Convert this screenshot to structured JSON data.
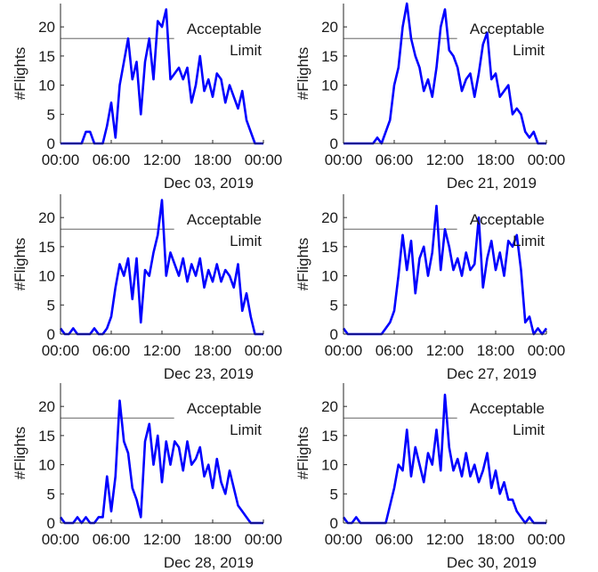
{
  "chart_data": [
    {
      "type": "line",
      "ylabel": "#Flights",
      "xlabel": "Dec 03, 2019",
      "x": [
        0,
        0.5,
        1,
        1.5,
        2,
        2.5,
        3,
        3.5,
        4,
        4.5,
        5,
        5.5,
        6,
        6.5,
        7,
        7.5,
        8,
        8.5,
        9,
        9.5,
        10,
        10.5,
        11,
        11.5,
        12,
        12.5,
        13,
        13.5,
        14,
        14.5,
        15,
        15.5,
        16,
        16.5,
        17,
        17.5,
        18,
        18.5,
        19,
        19.5,
        20,
        20.5,
        21,
        21.5,
        22,
        22.5,
        23,
        23.5,
        24
      ],
      "series": [
        {
          "color": "#0000ff",
          "values": [
            0,
            0,
            0,
            0,
            0,
            0,
            2,
            2,
            0,
            0,
            0,
            3,
            7,
            1,
            10,
            14,
            18,
            11,
            14,
            5,
            14,
            18,
            11,
            21,
            20,
            23,
            11,
            12,
            13,
            11,
            13,
            7,
            10,
            15,
            9,
            11,
            8,
            12,
            11,
            7,
            10,
            8,
            6,
            9,
            4,
            2,
            0,
            0,
            0
          ]
        }
      ],
      "xlim": [
        0,
        24
      ],
      "xticks": [
        {
          "value": 0,
          "label": "00:00"
        },
        {
          "value": 6,
          "label": "06:00"
        },
        {
          "value": 12,
          "label": "12:00"
        },
        {
          "value": 18,
          "label": "18:00"
        },
        {
          "value": 24,
          "label": "00:00"
        }
      ],
      "ylim": [
        0,
        24
      ],
      "yticks": [
        0,
        5,
        10,
        15,
        20
      ],
      "reference_line": {
        "value": 18,
        "color": "#808080"
      },
      "annotation": [
        "Acceptable",
        "Limit"
      ]
    },
    {
      "type": "line",
      "ylabel": "#Flights",
      "xlabel": "Dec 21, 2019",
      "x": [
        0,
        0.5,
        1,
        1.5,
        2,
        2.5,
        3,
        3.5,
        4,
        4.5,
        5,
        5.5,
        6,
        6.5,
        7,
        7.5,
        8,
        8.5,
        9,
        9.5,
        10,
        10.5,
        11,
        11.5,
        12,
        12.5,
        13,
        13.5,
        14,
        14.5,
        15,
        15.5,
        16,
        16.5,
        17,
        17.5,
        18,
        18.5,
        19,
        19.5,
        20,
        20.5,
        21,
        21.5,
        22,
        22.5,
        23,
        23.5,
        24
      ],
      "series": [
        {
          "color": "#0000ff",
          "values": [
            0,
            0,
            0,
            0,
            0,
            0,
            0,
            0,
            1,
            0,
            2,
            4,
            10,
            13,
            20,
            24,
            18,
            15,
            13,
            9,
            11,
            8,
            13,
            20,
            23,
            16,
            15,
            13,
            9,
            11,
            12,
            8,
            12,
            17,
            19,
            11,
            12,
            8,
            9,
            10,
            5,
            6,
            5,
            2,
            1,
            2,
            0,
            0,
            0
          ]
        }
      ],
      "xlim": [
        0,
        24
      ],
      "xticks": [
        {
          "value": 0,
          "label": "00:00"
        },
        {
          "value": 6,
          "label": "06:00"
        },
        {
          "value": 12,
          "label": "12:00"
        },
        {
          "value": 18,
          "label": "18:00"
        },
        {
          "value": 24,
          "label": "00:00"
        }
      ],
      "ylim": [
        0,
        24
      ],
      "yticks": [
        0,
        5,
        10,
        15,
        20
      ],
      "reference_line": {
        "value": 18,
        "color": "#808080"
      },
      "annotation": [
        "Acceptable",
        "Limit"
      ]
    },
    {
      "type": "line",
      "ylabel": "#Flights",
      "xlabel": "Dec 23, 2019",
      "x": [
        0,
        0.5,
        1,
        1.5,
        2,
        2.5,
        3,
        3.5,
        4,
        4.5,
        5,
        5.5,
        6,
        6.5,
        7,
        7.5,
        8,
        8.5,
        9,
        9.5,
        10,
        10.5,
        11,
        11.5,
        12,
        12.5,
        13,
        13.5,
        14,
        14.5,
        15,
        15.5,
        16,
        16.5,
        17,
        17.5,
        18,
        18.5,
        19,
        19.5,
        20,
        20.5,
        21,
        21.5,
        22,
        22.5,
        23,
        23.5,
        24
      ],
      "series": [
        {
          "color": "#0000ff",
          "values": [
            1,
            0,
            0,
            1,
            0,
            0,
            0,
            0,
            1,
            0,
            0,
            1,
            3,
            8,
            12,
            10,
            13,
            6,
            13,
            2,
            11,
            10,
            14,
            17,
            23,
            10,
            14,
            12,
            10,
            13,
            9,
            12,
            10,
            13,
            8,
            11,
            9,
            12,
            9,
            11,
            10,
            8,
            12,
            4,
            7,
            3,
            0,
            0,
            0
          ]
        }
      ],
      "xlim": [
        0,
        24
      ],
      "xticks": [
        {
          "value": 0,
          "label": "00:00"
        },
        {
          "value": 6,
          "label": "06:00"
        },
        {
          "value": 12,
          "label": "12:00"
        },
        {
          "value": 18,
          "label": "18:00"
        },
        {
          "value": 24,
          "label": "00:00"
        }
      ],
      "ylim": [
        0,
        24
      ],
      "yticks": [
        0,
        5,
        10,
        15,
        20
      ],
      "reference_line": {
        "value": 18,
        "color": "#808080"
      },
      "annotation": [
        "Acceptable",
        "Limit"
      ]
    },
    {
      "type": "line",
      "ylabel": "#Flights",
      "xlabel": "Dec 27, 2019",
      "x": [
        0,
        0.5,
        1,
        1.5,
        2,
        2.5,
        3,
        3.5,
        4,
        4.5,
        5,
        5.5,
        6,
        6.5,
        7,
        7.5,
        8,
        8.5,
        9,
        9.5,
        10,
        10.5,
        11,
        11.5,
        12,
        12.5,
        13,
        13.5,
        14,
        14.5,
        15,
        15.5,
        16,
        16.5,
        17,
        17.5,
        18,
        18.5,
        19,
        19.5,
        20,
        20.5,
        21,
        21.5,
        22,
        22.5,
        23,
        23.5,
        24
      ],
      "series": [
        {
          "color": "#0000ff",
          "values": [
            1,
            0,
            0,
            0,
            0,
            0,
            0,
            0,
            0,
            0,
            1,
            2,
            4,
            10,
            17,
            11,
            16,
            7,
            13,
            15,
            10,
            14,
            22,
            11,
            18,
            15,
            11,
            13,
            10,
            14,
            11,
            12,
            20,
            8,
            13,
            16,
            11,
            14,
            10,
            16,
            15,
            17,
            11,
            2,
            3,
            0,
            1,
            0,
            1
          ]
        }
      ],
      "xlim": [
        0,
        24
      ],
      "xticks": [
        {
          "value": 0,
          "label": "00:00"
        },
        {
          "value": 6,
          "label": "06:00"
        },
        {
          "value": 12,
          "label": "12:00"
        },
        {
          "value": 18,
          "label": "18:00"
        },
        {
          "value": 24,
          "label": "00:00"
        }
      ],
      "ylim": [
        0,
        24
      ],
      "yticks": [
        0,
        5,
        10,
        15,
        20
      ],
      "reference_line": {
        "value": 18,
        "color": "#808080"
      },
      "annotation": [
        "Acceptable",
        "Limit"
      ]
    },
    {
      "type": "line",
      "ylabel": "#Flights",
      "xlabel": "Dec 28, 2019",
      "x": [
        0,
        0.5,
        1,
        1.5,
        2,
        2.5,
        3,
        3.5,
        4,
        4.5,
        5,
        5.5,
        6,
        6.5,
        7,
        7.5,
        8,
        8.5,
        9,
        9.5,
        10,
        10.5,
        11,
        11.5,
        12,
        12.5,
        13,
        13.5,
        14,
        14.5,
        15,
        15.5,
        16,
        16.5,
        17,
        17.5,
        18,
        18.5,
        19,
        19.5,
        20,
        20.5,
        21,
        21.5,
        22,
        22.5,
        23,
        23.5,
        24
      ],
      "series": [
        {
          "color": "#0000ff",
          "values": [
            1,
            0,
            0,
            0,
            1,
            0,
            1,
            0,
            0,
            1,
            1,
            8,
            2,
            8,
            21,
            14,
            12,
            6,
            4,
            1,
            14,
            17,
            10,
            15,
            7,
            14,
            10,
            14,
            13,
            9,
            14,
            10,
            11,
            13,
            8,
            10,
            6,
            11,
            7,
            5,
            9,
            6,
            3,
            2,
            1,
            0,
            0,
            0,
            0
          ]
        }
      ],
      "xlim": [
        0,
        24
      ],
      "xticks": [
        {
          "value": 0,
          "label": "00:00"
        },
        {
          "value": 6,
          "label": "06:00"
        },
        {
          "value": 12,
          "label": "12:00"
        },
        {
          "value": 18,
          "label": "18:00"
        },
        {
          "value": 24,
          "label": "00:00"
        }
      ],
      "ylim": [
        0,
        24
      ],
      "yticks": [
        0,
        5,
        10,
        15,
        20
      ],
      "reference_line": {
        "value": 18,
        "color": "#808080"
      },
      "annotation": [
        "Acceptable",
        "Limit"
      ]
    },
    {
      "type": "line",
      "ylabel": "#Flights",
      "xlabel": "Dec 30, 2019",
      "x": [
        0,
        0.5,
        1,
        1.5,
        2,
        2.5,
        3,
        3.5,
        4,
        4.5,
        5,
        5.5,
        6,
        6.5,
        7,
        7.5,
        8,
        8.5,
        9,
        9.5,
        10,
        10.5,
        11,
        11.5,
        12,
        12.5,
        13,
        13.5,
        14,
        14.5,
        15,
        15.5,
        16,
        16.5,
        17,
        17.5,
        18,
        18.5,
        19,
        19.5,
        20,
        20.5,
        21,
        21.5,
        22,
        22.5,
        23,
        23.5,
        24
      ],
      "series": [
        {
          "color": "#0000ff",
          "values": [
            1,
            0,
            0,
            1,
            0,
            0,
            0,
            0,
            0,
            0,
            0,
            3,
            6,
            10,
            9,
            16,
            8,
            13,
            10,
            7,
            12,
            10,
            16,
            9,
            22,
            13,
            9,
            11,
            8,
            12,
            8,
            10,
            7,
            9,
            12,
            6,
            9,
            5,
            7,
            4,
            4,
            2,
            1,
            0,
            1,
            0,
            0,
            0,
            0
          ]
        }
      ],
      "xlim": [
        0,
        24
      ],
      "xticks": [
        {
          "value": 0,
          "label": "00:00"
        },
        {
          "value": 6,
          "label": "06:00"
        },
        {
          "value": 12,
          "label": "12:00"
        },
        {
          "value": 18,
          "label": "18:00"
        },
        {
          "value": 24,
          "label": "00:00"
        }
      ],
      "ylim": [
        0,
        24
      ],
      "yticks": [
        0,
        5,
        10,
        15,
        20
      ],
      "reference_line": {
        "value": 18,
        "color": "#808080"
      },
      "annotation": [
        "Acceptable",
        "Limit"
      ]
    }
  ]
}
